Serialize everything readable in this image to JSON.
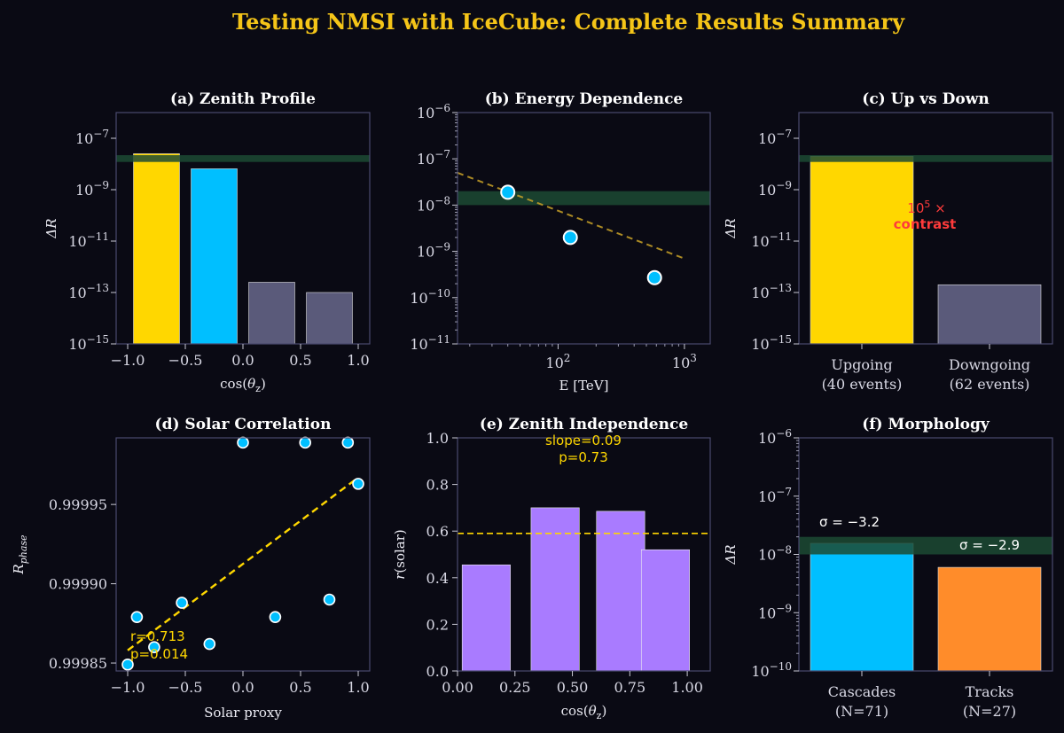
{
  "title": "Testing NMSI with IceCube: Complete Results Summary",
  "colors": {
    "background": "#0a0a14",
    "frame": "#4a4a6e",
    "gold": "#ffd700",
    "cyan": "#00bfff",
    "slate": "#5a5a7a",
    "purple": "#a97bff",
    "orange": "#ff8c2a",
    "band": "#1c4a32",
    "red": "#ff3b3b",
    "title": "#f5c518"
  },
  "chart_data": [
    {
      "id": "a",
      "type": "bar",
      "title": "(a) Zenith Profile",
      "xlabel": "cos(θz)",
      "ylabel": "ΔR",
      "yscale": "log",
      "xlim": [
        -1.1,
        1.1
      ],
      "ylim": [
        1e-15,
        1e-06
      ],
      "xticks": [
        "−1.0",
        "−0.5",
        "0.0",
        "0.5",
        "1.0"
      ],
      "yticks": [
        "10−15",
        "10−13",
        "10−11",
        "10−9",
        "10−7"
      ],
      "bars": [
        {
          "x": -0.75,
          "value": 2.5e-08,
          "color": "gold"
        },
        {
          "x": -0.25,
          "value": 6.5e-09,
          "color": "cyan"
        },
        {
          "x": 0.25,
          "value": 2.5e-13,
          "color": "slate"
        },
        {
          "x": 0.75,
          "value": 1e-13,
          "color": "slate"
        }
      ],
      "band": [
        1.2e-08,
        2.2e-08
      ]
    },
    {
      "id": "b",
      "type": "scatter",
      "title": "(b) Energy Dependence",
      "xlabel": "E [TeV]",
      "ylabel": "",
      "xscale": "log",
      "yscale": "log",
      "xlim": [
        16,
        1600
      ],
      "ylim": [
        1e-11,
        1e-06
      ],
      "xticks": [
        "10²",
        "10³"
      ],
      "yticks": [
        "10−11",
        "10−10",
        "10−9",
        "10−8",
        "10−7",
        "10−6"
      ],
      "points": [
        {
          "x": 40,
          "y": 1.9e-08
        },
        {
          "x": 125,
          "y": 2e-09
        },
        {
          "x": 580,
          "y": 2.7e-10
        }
      ],
      "fit": [
        [
          16,
          5e-08
        ],
        [
          1000,
          7e-10
        ]
      ],
      "band": [
        1e-08,
        2e-08
      ]
    },
    {
      "id": "c",
      "type": "bar",
      "title": "(c) Up vs Down",
      "xlabel": "",
      "ylabel": "ΔR",
      "yscale": "log",
      "ylim": [
        1e-15,
        1e-06
      ],
      "categories": [
        [
          "Upgoing",
          "(40 events)"
        ],
        [
          "Downgoing",
          "(62 events)"
        ]
      ],
      "values": [
        2e-08,
        2e-13
      ],
      "bar_colors": [
        "gold",
        "slate"
      ],
      "yticks": [
        "10−15",
        "10−13",
        "10−11",
        "10−9",
        "10−7"
      ],
      "band": [
        1.2e-08,
        2.2e-08
      ],
      "annotation": [
        "10⁵ ×",
        "contrast"
      ]
    },
    {
      "id": "d",
      "type": "scatter",
      "title": "(d) Solar Correlation",
      "xlabel": "Solar proxy",
      "ylabel": "Rphase",
      "xlim": [
        -1.1,
        1.1
      ],
      "ylim": [
        0.999845,
        0.999992
      ],
      "xticks": [
        "−1.0",
        "−0.5",
        "0.0",
        "0.5",
        "1.0"
      ],
      "yticks": [
        "0.99985",
        "0.99990",
        "0.99995"
      ],
      "points": [
        {
          "x": -1.0,
          "y": 0.999849
        },
        {
          "x": -0.92,
          "y": 0.999879
        },
        {
          "x": -0.77,
          "y": 0.99986
        },
        {
          "x": -0.53,
          "y": 0.999888
        },
        {
          "x": -0.29,
          "y": 0.999862
        },
        {
          "x": 0.0,
          "y": 0.999989
        },
        {
          "x": 0.28,
          "y": 0.999879
        },
        {
          "x": 0.54,
          "y": 0.999989
        },
        {
          "x": 0.75,
          "y": 0.99989
        },
        {
          "x": 0.91,
          "y": 0.999989
        },
        {
          "x": 1.0,
          "y": 0.999963
        }
      ],
      "fit": [
        [
          -1.0,
          0.999858
        ],
        [
          1.0,
          0.999967
        ]
      ],
      "stats": [
        "r=0.713",
        "p=0.014"
      ]
    },
    {
      "id": "e",
      "type": "bar",
      "title": "(e) Zenith Independence",
      "xlabel": "cos(θz)",
      "ylabel": "r(solar)",
      "xlim": [
        0,
        1.1
      ],
      "ylim": [
        0,
        1.0
      ],
      "xticks": [
        "0.00",
        "0.25",
        "0.50",
        "0.75",
        "1.00"
      ],
      "yticks": [
        "0.0",
        "0.2",
        "0.4",
        "0.6",
        "0.8",
        "1.0"
      ],
      "bars": [
        {
          "x": 0.125,
          "value": 0.455
        },
        {
          "x": 0.425,
          "value": 0.7
        },
        {
          "x": 0.71,
          "value": 0.685
        },
        {
          "x": 0.905,
          "value": 0.52
        }
      ],
      "hline": 0.59,
      "stats": [
        "slope=0.09",
        "p=0.73"
      ]
    },
    {
      "id": "f",
      "type": "bar",
      "title": "(f) Morphology",
      "xlabel": "",
      "ylabel": "ΔR",
      "yscale": "log",
      "ylim": [
        1e-10,
        1e-06
      ],
      "categories": [
        [
          "Cascades",
          "(N=71)"
        ],
        [
          "Tracks",
          "(N=27)"
        ]
      ],
      "values": [
        1.55e-08,
        6e-09
      ],
      "bar_colors": [
        "cyan",
        "orange"
      ],
      "yticks": [
        "10−10",
        "10−9",
        "10−8",
        "10−7",
        "10−6"
      ],
      "band": [
        1e-08,
        2e-08
      ],
      "sigma_labels": [
        "σ = −3.2",
        "σ = −2.9"
      ]
    }
  ]
}
